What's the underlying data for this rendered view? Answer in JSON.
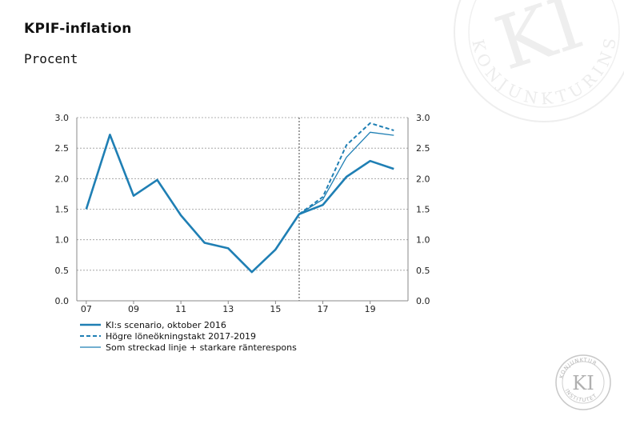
{
  "slide": {
    "title": "KPIF-inflation",
    "subtitle": "Procent",
    "watermark_text": "KONJUNKTURINSTITUTET",
    "seal_text": "KI"
  },
  "chart_data": {
    "type": "line",
    "title": "KPIF-inflation",
    "ylabel": "Procent",
    "xlabel": "",
    "ylim": [
      0.0,
      3.0
    ],
    "yticks": [
      0.0,
      0.5,
      1.0,
      1.5,
      2.0,
      2.5,
      3.0
    ],
    "ytick_labels": [
      "0.0",
      "0.5",
      "1.0",
      "1.5",
      "2.0",
      "2.5",
      "3.0"
    ],
    "right_axis": true,
    "xlim": [
      2006.6,
      2020.6
    ],
    "xticks": [
      2007,
      2009,
      2011,
      2013,
      2015,
      2017,
      2019
    ],
    "xtick_labels": [
      "07",
      "09",
      "11",
      "13",
      "15",
      "17",
      "19"
    ],
    "forecast_start": 2016,
    "grid": true,
    "colors": {
      "line": "#1f7fb4",
      "grid": "#999999",
      "axis": "#888888"
    },
    "legend_position": "bottom-left",
    "series": [
      {
        "name": "KI:s scenario, oktober 2016",
        "style": "thick-solid",
        "x": [
          2007,
          2008,
          2009,
          2010,
          2011,
          2012,
          2013,
          2014,
          2015,
          2016,
          2017,
          2018,
          2019,
          2020
        ],
        "values": [
          1.5,
          2.72,
          1.72,
          1.98,
          1.4,
          0.95,
          0.86,
          0.47,
          0.84,
          1.42,
          1.57,
          2.03,
          2.29,
          2.16
        ]
      },
      {
        "name": "Högre löneökningstakt 2017-2019",
        "style": "dashed",
        "x": [
          2016,
          2017,
          2018,
          2019,
          2020
        ],
        "values": [
          1.42,
          1.7,
          2.55,
          2.91,
          2.79
        ]
      },
      {
        "name": "Som streckad linje + starkare ränterespons",
        "style": "thin-solid",
        "x": [
          2016,
          2017,
          2018,
          2019,
          2020
        ],
        "values": [
          1.42,
          1.66,
          2.35,
          2.76,
          2.71
        ]
      }
    ]
  }
}
